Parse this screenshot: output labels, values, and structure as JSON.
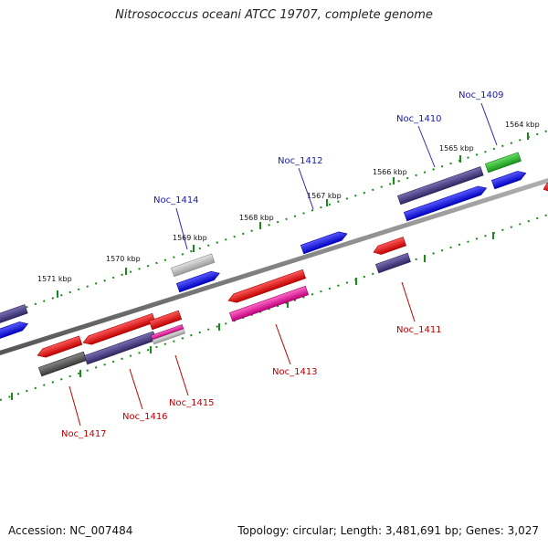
{
  "title": "Nitrosococcus oceani ATCC 19707, complete genome",
  "accession_text": "Accession: NC_007484",
  "topology_text": "Topology: circular; Length: 3,481,691 bp; Genes: 3,027",
  "colors": {
    "forward_blue": "#1f1fdd",
    "cds_red": "#e01010",
    "cds_purple": "#4a3f86",
    "cds_magenta": "#e0179a",
    "cds_green": "#22b322",
    "cds_gray": "#555555",
    "cds_lightgray": "#bdbdbd",
    "backbone": "#808080",
    "tick_green": "#1a8a1a",
    "upper_label": "#1a1aaa",
    "lower_label": "#bb0000"
  },
  "ruler_labels": [
    "1571 kbp",
    "1570 kbp",
    "1569 kbp",
    "1568 kbp",
    "1567 kbp",
    "1566 kbp",
    "1565 kbp",
    "1564 kbp"
  ],
  "gene_labels_upper": [
    "Noc_1414",
    "Noc_1412",
    "Noc_1410",
    "Noc_1409"
  ],
  "gene_labels_lower": [
    "Noc_1417",
    "Noc_1416",
    "Noc_1415",
    "Noc_1413",
    "Noc_1411"
  ]
}
